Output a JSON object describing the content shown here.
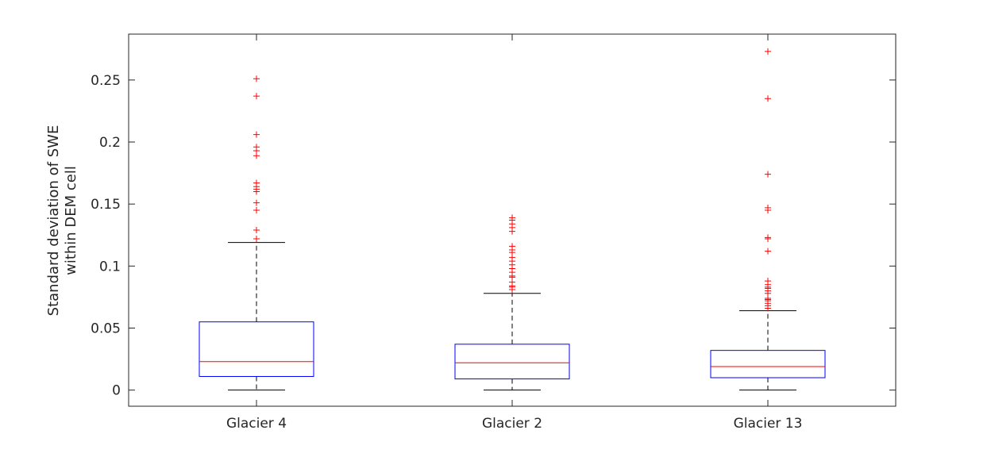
{
  "chart_data": {
    "type": "box",
    "xlabel": "",
    "ylabel": [
      "Standard deviation of SWE",
      "within DEM cell"
    ],
    "ylim": [
      -0.013,
      0.287
    ],
    "yticks": [
      0,
      0.05,
      0.1,
      0.15,
      0.2,
      0.25
    ],
    "ytick_labels": [
      "0",
      "0.05",
      "0.1",
      "0.15",
      "0.2",
      "0.25"
    ],
    "categories": [
      "Glacier 4",
      "Glacier 2",
      "Glacier 13"
    ],
    "grid": false,
    "colors": {
      "box": "#0000ff",
      "median": "#ff0000",
      "whisker": "#000000",
      "outlier": "#ff0000",
      "axes": "#262626"
    },
    "boxes": [
      {
        "label": "Glacier 4",
        "whisker_low": 0.0,
        "q1": 0.011,
        "median": 0.023,
        "q3": 0.055,
        "whisker_high": 0.119,
        "outliers": [
          0.122,
          0.129,
          0.145,
          0.151,
          0.16,
          0.162,
          0.164,
          0.167,
          0.189,
          0.193,
          0.196,
          0.206,
          0.237,
          0.251
        ]
      },
      {
        "label": "Glacier 2",
        "whisker_low": 0.0,
        "q1": 0.009,
        "median": 0.022,
        "q3": 0.037,
        "whisker_high": 0.078,
        "outliers": [
          0.081,
          0.083,
          0.084,
          0.087,
          0.091,
          0.092,
          0.095,
          0.098,
          0.101,
          0.104,
          0.107,
          0.111,
          0.113,
          0.116,
          0.128,
          0.131,
          0.134,
          0.137,
          0.139
        ]
      },
      {
        "label": "Glacier 13",
        "whisker_low": 0.0,
        "q1": 0.01,
        "median": 0.019,
        "q3": 0.032,
        "whisker_high": 0.064,
        "outliers": [
          0.066,
          0.068,
          0.07,
          0.072,
          0.073,
          0.074,
          0.078,
          0.08,
          0.082,
          0.083,
          0.085,
          0.088,
          0.112,
          0.122,
          0.123,
          0.145,
          0.147,
          0.174,
          0.235,
          0.273
        ]
      }
    ]
  }
}
